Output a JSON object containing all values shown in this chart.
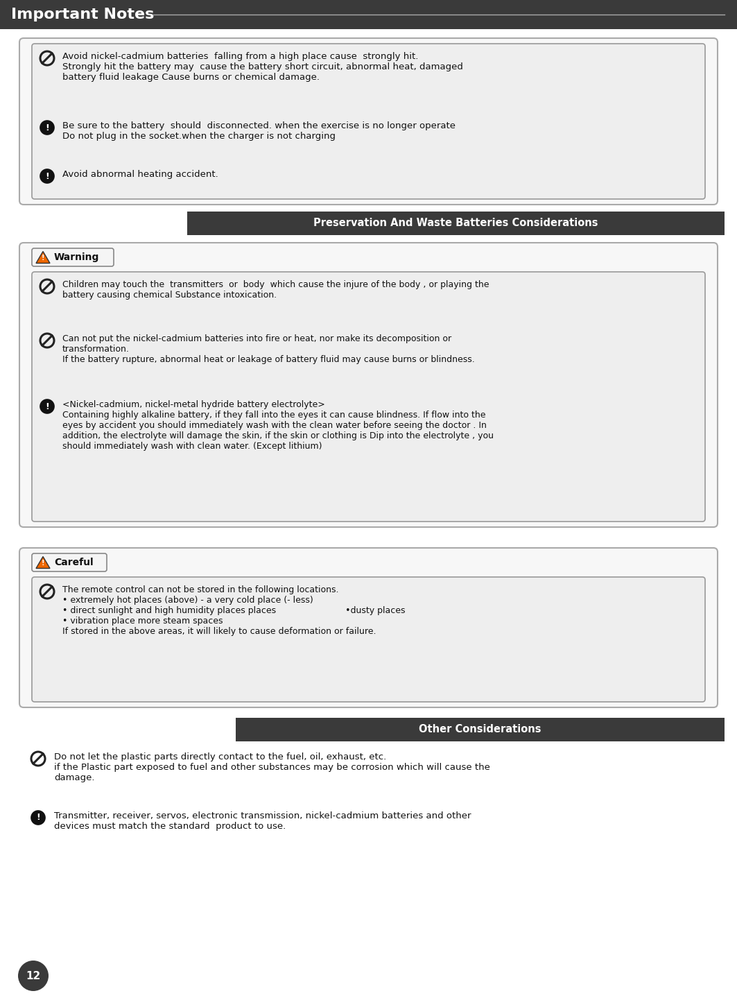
{
  "page_bg": "#ffffff",
  "header_bg": "#3a3a3a",
  "header_text": "Important Notes",
  "header_text_color": "#ffffff",
  "section_bg_dark": "#3a3a3a",
  "section_text_color": "#ffffff",
  "text_color": "#111111",
  "page_num": "12",
  "section1_title": "Preservation And Waste Batteries Considerations",
  "section2_title": "Other Considerations",
  "warning_label": "Warning",
  "careful_label": "Careful",
  "block1_texts": [
    "Avoid nickel-cadmium batteries  falling from a high place cause  strongly hit.\nStrongly hit the battery may  cause the battery short circuit, abnormal heat, damaged\nbattery fluid leakage Cause burns or chemical damage.",
    "Be sure to the battery  should  disconnected. when the exercise is no longer operate\nDo not plug in the socket.when the charger is not charging",
    "Avoid abnormal heating accident."
  ],
  "block1_icons": [
    "no",
    "warn",
    "warn"
  ],
  "warning_texts": [
    "Children may touch the  transmitters  or  body  which cause the injure of the body , or playing the\nbattery causing chemical Substance intoxication.",
    "Can not put the nickel-cadmium batteries into fire or heat, nor make its decomposition or\ntransformation.\nIf the battery rupture, abnormal heat or leakage of battery fluid may cause burns or blindness.",
    "<Nickel-cadmium, nickel-metal hydride battery electrolyte>\nContaining highly alkaline battery, if they fall into the eyes it can cause blindness. If flow into the\neyes by accident you should immediately wash with the clean water before seeing the doctor . In\naddition, the electrolyte will damage the skin, if the skin or clothing is Dip into the electrolyte , you\nshould immediately wash with clean water. (Except lithium)"
  ],
  "warning_icons": [
    "no",
    "no",
    "warn"
  ],
  "careful_texts": [
    "The remote control can not be stored in the following locations.\n• extremely hot places (above) - a very cold place (- less)\n• direct sunlight and high humidity places places                         •dusty places\n• vibration place more steam spaces\nIf stored in the above areas, it will likely to cause deformation or failure."
  ],
  "careful_icons": [
    "no"
  ],
  "other_texts": [
    "Do not let the plastic parts directly contact to the fuel, oil, exhaust, etc.\nif the Plastic part exposed to fuel and other substances may be corrosion which will cause the\ndamage.",
    "Transmitter, receiver, servos, electronic transmission, nickel-cadmium batteries and other\ndevices must match the standard  product to use."
  ],
  "other_icons": [
    "no",
    "warn"
  ]
}
